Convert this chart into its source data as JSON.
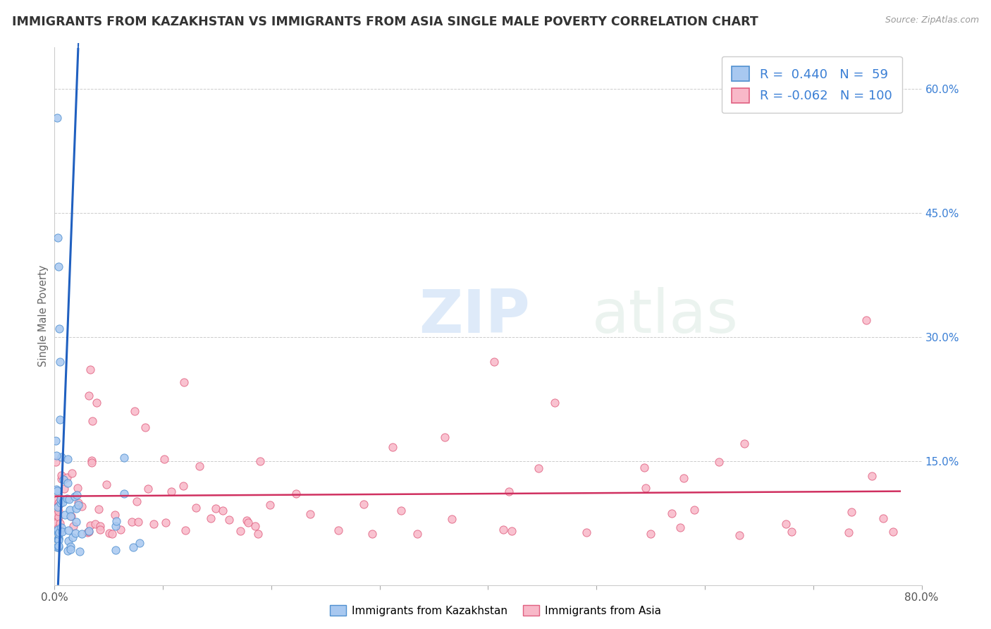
{
  "title": "IMMIGRANTS FROM KAZAKHSTAN VS IMMIGRANTS FROM ASIA SINGLE MALE POVERTY CORRELATION CHART",
  "source": "Source: ZipAtlas.com",
  "ylabel": "Single Male Poverty",
  "xlim": [
    0.0,
    0.8
  ],
  "ylim": [
    0.0,
    0.65
  ],
  "y_ticks_right": [
    0.15,
    0.3,
    0.45,
    0.6
  ],
  "y_tick_labels_right": [
    "15.0%",
    "30.0%",
    "45.0%",
    "60.0%"
  ],
  "R_kaz": 0.44,
  "N_kaz": 59,
  "R_asia": -0.062,
  "N_asia": 100,
  "color_kaz": "#a8c8f0",
  "color_asia": "#f8b8c8",
  "edge_kaz": "#5090d0",
  "edge_asia": "#e06080",
  "line_color_kaz": "#2060c0",
  "line_color_asia": "#d03060",
  "background_color": "#ffffff",
  "grid_color": "#cccccc",
  "watermark_zip": "ZIP",
  "watermark_atlas": "atlas",
  "title_fontsize": 12.5,
  "legend_fontsize": 13
}
